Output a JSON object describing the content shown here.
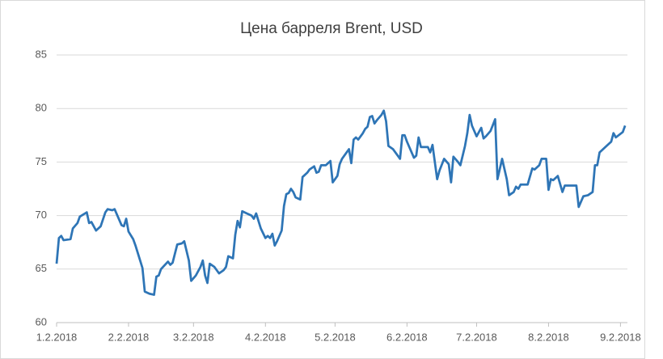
{
  "chart_data": {
    "type": "line",
    "title": "Цена барреля Brent, USD",
    "x": [
      "2018-01-02",
      "2018-01-03",
      "2018-01-04",
      "2018-01-05",
      "2018-01-08",
      "2018-01-09",
      "2018-01-11",
      "2018-01-12",
      "2018-01-15",
      "2018-01-16",
      "2018-01-17",
      "2018-01-19",
      "2018-01-21",
      "2018-01-23",
      "2018-01-24",
      "2018-01-26",
      "2018-01-27",
      "2018-01-30",
      "2018-01-31",
      "2018-02-01",
      "2018-02-02",
      "2018-02-04",
      "2018-02-05",
      "2018-02-07",
      "2018-02-08",
      "2018-02-09",
      "2018-02-11",
      "2018-02-13",
      "2018-02-14",
      "2018-02-15",
      "2018-02-16",
      "2018-02-19",
      "2018-02-20",
      "2018-02-21",
      "2018-02-23",
      "2018-02-25",
      "2018-02-26",
      "2018-02-28",
      "2018-03-01",
      "2018-03-03",
      "2018-03-05",
      "2018-03-06",
      "2018-03-07",
      "2018-03-08",
      "2018-03-09",
      "2018-03-11",
      "2018-03-12",
      "2018-03-13",
      "2018-03-15",
      "2018-03-16",
      "2018-03-17",
      "2018-03-19",
      "2018-03-20",
      "2018-03-21",
      "2018-03-22",
      "2018-03-23",
      "2018-03-25",
      "2018-03-27",
      "2018-03-28",
      "2018-03-29",
      "2018-03-31",
      "2018-04-02",
      "2018-04-03",
      "2018-04-04",
      "2018-04-05",
      "2018-04-06",
      "2018-04-07",
      "2018-04-09",
      "2018-04-10",
      "2018-04-11",
      "2018-04-12",
      "2018-04-13",
      "2018-04-14",
      "2018-04-15",
      "2018-04-17",
      "2018-04-18",
      "2018-04-20",
      "2018-04-21",
      "2018-04-23",
      "2018-04-24",
      "2018-04-25",
      "2018-04-26",
      "2018-04-28",
      "2018-04-29",
      "2018-04-30",
      "2018-05-01",
      "2018-05-03",
      "2018-05-04",
      "2018-05-05",
      "2018-05-07",
      "2018-05-08",
      "2018-05-09",
      "2018-05-10",
      "2018-05-11",
      "2018-05-12",
      "2018-05-14",
      "2018-05-15",
      "2018-05-16",
      "2018-05-17",
      "2018-05-18",
      "2018-05-19",
      "2018-05-20",
      "2018-05-22",
      "2018-05-23",
      "2018-05-24",
      "2018-05-25",
      "2018-05-27",
      "2018-05-29",
      "2018-05-30",
      "2018-05-31",
      "2018-06-01",
      "2018-06-02",
      "2018-06-03",
      "2018-06-05",
      "2018-06-06",
      "2018-06-07",
      "2018-06-08",
      "2018-06-11",
      "2018-06-12",
      "2018-06-13",
      "2018-06-15",
      "2018-06-16",
      "2018-06-18",
      "2018-06-20",
      "2018-06-21",
      "2018-06-22",
      "2018-06-24",
      "2018-06-25",
      "2018-06-27",
      "2018-06-28",
      "2018-06-29",
      "2018-06-30",
      "2018-07-02",
      "2018-07-04",
      "2018-07-05",
      "2018-07-06",
      "2018-07-08",
      "2018-07-10",
      "2018-07-11",
      "2018-07-13",
      "2018-07-15",
      "2018-07-16",
      "2018-07-18",
      "2018-07-19",
      "2018-07-20",
      "2018-07-21",
      "2018-07-24",
      "2018-07-26",
      "2018-07-27",
      "2018-07-29",
      "2018-07-30",
      "2018-08-01",
      "2018-08-02",
      "2018-08-03",
      "2018-08-04",
      "2018-08-06",
      "2018-08-08",
      "2018-08-09",
      "2018-08-14",
      "2018-08-15",
      "2018-08-17",
      "2018-08-19",
      "2018-08-21",
      "2018-08-22",
      "2018-08-23",
      "2018-08-24",
      "2018-08-27",
      "2018-08-29",
      "2018-08-30",
      "2018-08-31",
      "2018-09-03",
      "2018-09-04"
    ],
    "values": [
      65.5,
      67.9,
      68.1,
      67.7,
      67.8,
      68.8,
      69.3,
      69.9,
      70.3,
      69.3,
      69.4,
      68.6,
      69.0,
      70.3,
      70.6,
      70.5,
      70.6,
      69.1,
      69.0,
      69.7,
      68.5,
      67.8,
      67.2,
      65.8,
      65.1,
      62.9,
      62.7,
      62.6,
      64.3,
      64.4,
      65.0,
      65.7,
      65.4,
      65.6,
      67.3,
      67.4,
      67.6,
      65.8,
      63.9,
      64.4,
      65.2,
      65.8,
      64.4,
      63.7,
      65.5,
      65.2,
      64.9,
      64.6,
      64.9,
      65.2,
      66.2,
      66.0,
      68.2,
      69.5,
      68.9,
      70.4,
      70.2,
      70.0,
      69.7,
      70.2,
      68.8,
      67.9,
      68.1,
      67.9,
      68.3,
      67.2,
      67.6,
      68.6,
      70.9,
      72.0,
      72.1,
      72.5,
      72.2,
      71.7,
      71.5,
      73.6,
      74.0,
      74.3,
      74.6,
      74.0,
      74.1,
      74.7,
      74.7,
      74.9,
      75.1,
      73.1,
      73.7,
      74.8,
      75.3,
      75.9,
      76.2,
      74.9,
      77.1,
      77.3,
      77.1,
      77.7,
      78.1,
      78.3,
      79.2,
      79.3,
      78.6,
      78.9,
      79.4,
      79.8,
      78.8,
      76.5,
      76.2,
      75.6,
      75.3,
      77.5,
      77.5,
      76.9,
      76.4,
      75.4,
      75.6,
      77.3,
      76.4,
      76.4,
      75.9,
      76.6,
      73.4,
      74.2,
      75.3,
      74.8,
      73.1,
      75.5,
      75.0,
      74.7,
      76.5,
      77.7,
      79.4,
      78.4,
      77.4,
      78.2,
      77.2,
      77.4,
      77.9,
      79.0,
      73.4,
      75.3,
      73.4,
      71.9,
      72.2,
      72.7,
      72.5,
      72.9,
      72.9,
      74.4,
      74.3,
      74.7,
      75.3,
      75.3,
      72.4,
      73.4,
      73.3,
      73.7,
      72.2,
      72.8,
      72.8,
      70.8,
      71.8,
      71.9,
      72.2,
      74.7,
      74.7,
      75.9,
      76.5,
      76.9,
      77.7,
      77.3,
      77.8,
      78.4
    ],
    "color": "#2e75b6",
    "xlim": [
      "2018-01-02",
      "2018-09-05"
    ],
    "xticks": [
      {
        "value": "2018-01-02",
        "label": "1.2.2018"
      },
      {
        "value": "2018-02-02",
        "label": "2.2.2018"
      },
      {
        "value": "2018-03-02",
        "label": "3.2.2018"
      },
      {
        "value": "2018-04-02",
        "label": "4.2.2018"
      },
      {
        "value": "2018-05-02",
        "label": "5.2.2018"
      },
      {
        "value": "2018-06-02",
        "label": "6.2.2018"
      },
      {
        "value": "2018-07-02",
        "label": "7.2.2018"
      },
      {
        "value": "2018-08-02",
        "label": "8.2.2018"
      },
      {
        "value": "2018-09-02",
        "label": "9.2.2018"
      }
    ],
    "ylim": [
      60,
      85
    ],
    "yticks": [
      60,
      65,
      70,
      75,
      80,
      85
    ],
    "grid": true
  }
}
